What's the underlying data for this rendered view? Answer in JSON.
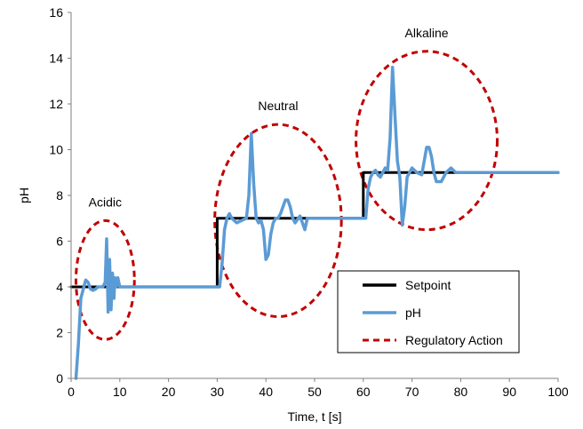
{
  "chart_data": {
    "type": "line",
    "title": "",
    "xlabel": "Time, t [s]",
    "ylabel": "pH",
    "xlim": [
      0,
      100
    ],
    "ylim": [
      0,
      16
    ],
    "xticks": [
      0,
      10,
      20,
      30,
      40,
      50,
      60,
      70,
      80,
      90,
      100
    ],
    "yticks": [
      0,
      2,
      4,
      6,
      8,
      10,
      12,
      14,
      16
    ],
    "grid": false,
    "legend_position": "bottom-right",
    "series": [
      {
        "name": "Setpoint",
        "style": "solid",
        "color": "#000000",
        "x": [
          0,
          30,
          30,
          60,
          60,
          100
        ],
        "y": [
          4,
          4,
          7,
          7,
          9,
          9
        ]
      },
      {
        "name": "pH",
        "style": "solid",
        "color": "#5B9BD5",
        "x": [
          1,
          1.5,
          2,
          2.5,
          3,
          3.5,
          4,
          4.5,
          5,
          5.5,
          6,
          6.5,
          7,
          7.3,
          7.6,
          7.9,
          8.2,
          8.5,
          8.8,
          9,
          9.3,
          9.6,
          10,
          20,
          30,
          30.5,
          31,
          31.5,
          32,
          32.5,
          33,
          34,
          35,
          36,
          36.5,
          37,
          37.5,
          38,
          38.5,
          39,
          39.5,
          40,
          40.5,
          41,
          41.5,
          42,
          42.5,
          43,
          43.5,
          44,
          44.5,
          45,
          45.5,
          46,
          47,
          48,
          48.5,
          49,
          50,
          55,
          60,
          60.5,
          61,
          61.5,
          62,
          62.5,
          63,
          63.5,
          64,
          64.5,
          65,
          65.5,
          66,
          66.5,
          67,
          67.5,
          68,
          68.5,
          69,
          70,
          71,
          72,
          72.5,
          73,
          73.5,
          74,
          74.5,
          75,
          76,
          77,
          78,
          79,
          80,
          81,
          82,
          83,
          84,
          85,
          90,
          100
        ],
        "y": [
          0,
          1.5,
          3.5,
          3.9,
          4.3,
          4.2,
          3.9,
          3.85,
          3.9,
          4.0,
          4.0,
          4.0,
          4.2,
          6.1,
          2.9,
          5.2,
          3.0,
          4.6,
          3.5,
          4.4,
          4.0,
          4.4,
          4.0,
          4.0,
          4.0,
          4.0,
          5.0,
          6.5,
          7.0,
          7.2,
          7.0,
          6.8,
          6.9,
          7.0,
          8.0,
          10.7,
          8.5,
          7.0,
          6.8,
          6.9,
          6.5,
          5.2,
          5.4,
          6.3,
          6.8,
          7.0,
          7.0,
          7.2,
          7.5,
          7.8,
          7.8,
          7.5,
          7.0,
          6.8,
          7.1,
          6.5,
          7.0,
          7.0,
          7.0,
          7.0,
          7.0,
          7.0,
          8.3,
          8.8,
          9.0,
          9.1,
          8.9,
          8.8,
          9.0,
          9.2,
          9.1,
          10.5,
          13.6,
          11.5,
          9.5,
          8.8,
          6.7,
          7.5,
          8.8,
          9.2,
          9.0,
          8.9,
          9.5,
          10.1,
          10.1,
          9.7,
          9.0,
          8.6,
          8.6,
          9.0,
          9.2,
          9.0,
          9.0,
          9.0,
          9.0,
          9.0,
          9.0,
          9.0,
          9.0,
          9.0
        ]
      }
    ],
    "regions": [
      {
        "label": "Acidic",
        "center": [
          7,
          4.3
        ],
        "radius": [
          6,
          2.6
        ]
      },
      {
        "label": "Neutral",
        "center": [
          42.5,
          6.9
        ],
        "radius": [
          13,
          4.2
        ]
      },
      {
        "label": "Alkaline",
        "center": [
          73,
          10.4
        ],
        "radius": [
          14.5,
          3.9
        ]
      }
    ],
    "legend_entries": [
      {
        "label": "Setpoint",
        "style": "solid",
        "color": "#000000"
      },
      {
        "label": "pH",
        "style": "solid",
        "color": "#5B9BD5"
      },
      {
        "label": "Regulatory Action",
        "style": "dashed",
        "color": "#C00000"
      }
    ],
    "colors": {
      "setpoint": "#000000",
      "ph": "#5B9BD5",
      "regulatory_action": "#C00000"
    }
  }
}
